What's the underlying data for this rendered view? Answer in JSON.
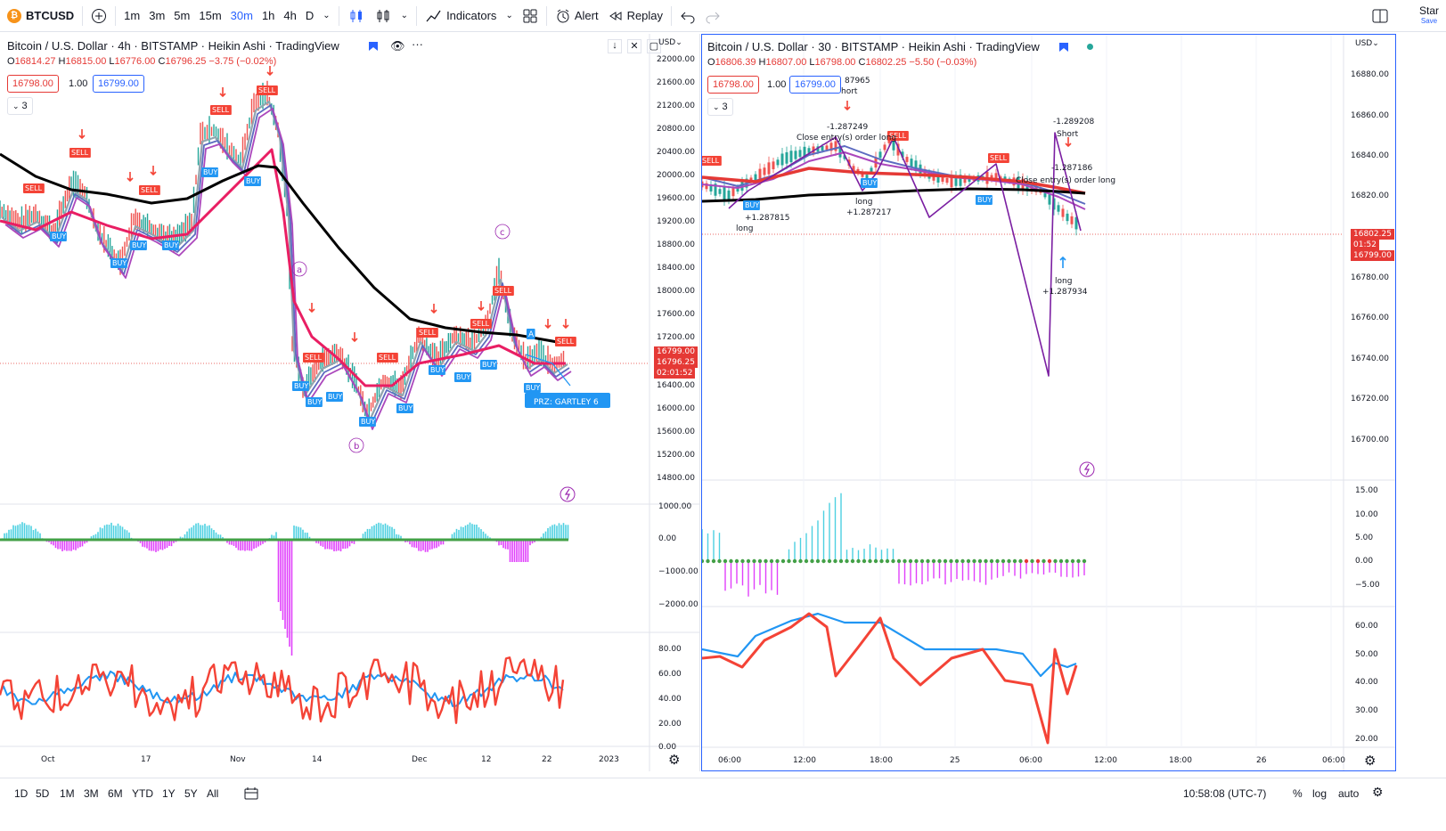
{
  "topbar": {
    "symbol": "BTCUSD",
    "symbol_badge": "₿",
    "intervals": [
      "1m",
      "3m",
      "5m",
      "15m",
      "30m",
      "1h",
      "4h",
      "D"
    ],
    "active_interval": "30m",
    "indicators_label": "Indicators",
    "alert_label": "Alert",
    "replay_label": "Replay",
    "star_label": "Star",
    "save_label": "Save"
  },
  "left_chart": {
    "title": "Bitcoin / U.S. Dollar · 4h · BITSTAMP · Heikin Ashi · TradingView",
    "ohlc": {
      "o": "16814.27",
      "h": "16815.00",
      "l": "16776.00",
      "c": "16796.25",
      "chg": "−3.75 (−0.02%)"
    },
    "bid": "16798.00",
    "spread": "1.00",
    "ask": "16799.00",
    "collapse": "3",
    "currency": "USD",
    "price_axis": [
      "22000.00",
      "21600.00",
      "21200.00",
      "20800.00",
      "20400.00",
      "20000.00",
      "19600.00",
      "19200.00",
      "18800.00",
      "18400.00",
      "18000.00",
      "17600.00",
      "17200.00",
      "16400.00",
      "16000.00",
      "15600.00",
      "15200.00",
      "14800.00"
    ],
    "price_tags": [
      "16799.00",
      "16796.25",
      "02:01:52"
    ],
    "osc_axis": [
      "1000.00",
      "0.00",
      "−1000.00",
      "−2000.00"
    ],
    "rsi_axis": [
      "80.00",
      "60.00",
      "40.00",
      "20.00",
      "0.00"
    ],
    "time_axis": [
      "Oct",
      "17",
      "Nov",
      "14",
      "Dec",
      "12",
      "22",
      "2023"
    ],
    "wave_labels": [
      "a",
      "b",
      "c"
    ],
    "harmonic_label": "PRZ: GARTLEY 6",
    "harmonic_point": "A",
    "signal_sell": "SELL",
    "signal_buy": "BUY"
  },
  "right_chart": {
    "title": "Bitcoin / U.S. Dollar · 30 · BITSTAMP · Heikin Ashi · TradingView",
    "ohlc": {
      "o": "16806.39",
      "h": "16807.00",
      "l": "16798.00",
      "c": "16802.25",
      "chg": "−5.50 (−0.03%)"
    },
    "bid": "16798.00",
    "spread": "1.00",
    "ask": "16799.00",
    "collapse": "3",
    "currency": "USD",
    "price_axis": [
      "16880.00",
      "16860.00",
      "16840.00",
      "16820.00",
      "16780.00",
      "16760.00",
      "16740.00",
      "16720.00",
      "16700.00"
    ],
    "price_tags": [
      "16802.25",
      "01:52",
      "16799.00"
    ],
    "osc_axis": [
      "15.00",
      "10.00",
      "5.00",
      "0.00",
      "−5.00"
    ],
    "rsi_axis": [
      "60.00",
      "50.00",
      "40.00",
      "30.00",
      "20.00"
    ],
    "time_axis": [
      "06:00",
      "12:00",
      "18:00",
      "25",
      "06:00",
      "12:00",
      "18:00",
      "26",
      "06:00"
    ],
    "annotations": [
      {
        "text": "87965"
      },
      {
        "text": "hort"
      },
      {
        "text": "-1.287249"
      },
      {
        "text": "Close entry(s) order long"
      },
      {
        "text": "long"
      },
      {
        "text": "+1.287815"
      },
      {
        "text": "long"
      },
      {
        "text": "+1.287217"
      },
      {
        "text": "-1.289208"
      },
      {
        "text": "Short"
      },
      {
        "text": "-1.287186"
      },
      {
        "text": "Close entry(s) order long"
      },
      {
        "text": "long"
      },
      {
        "text": "+1.287934"
      }
    ]
  },
  "bottombar": {
    "ranges": [
      "1D",
      "5D",
      "1M",
      "3M",
      "6M",
      "YTD",
      "1Y",
      "5Y",
      "All"
    ],
    "clock": "10:58:08 (UTC-7)",
    "pct": "%",
    "log": "log",
    "auto": "auto"
  },
  "colors": {
    "sell": "#f44336",
    "buy": "#2196f3",
    "ema_black": "#000000",
    "ema_red": "#e91e63",
    "accent": "#2962ff",
    "rsi_red": "#f44336",
    "rsi_blue": "#2196f3"
  }
}
